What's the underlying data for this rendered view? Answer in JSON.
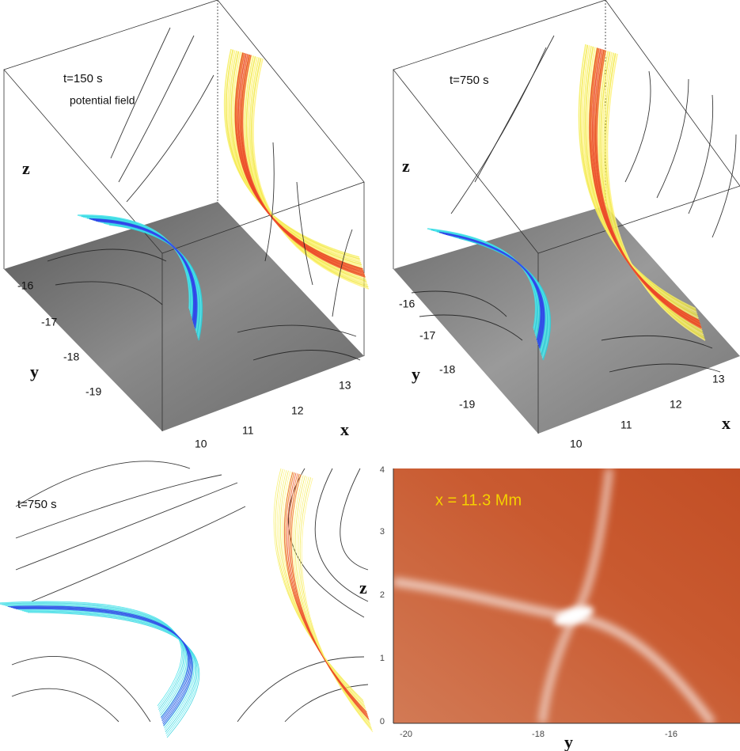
{
  "panels": [
    {
      "time_label": "t=150 s",
      "note": "potential field",
      "z_label": "z",
      "y_label": "y",
      "x_label": "x",
      "y_ticks": [
        "-16",
        "-17",
        "-18",
        "-19"
      ],
      "x_ticks": [
        "10",
        "11",
        "12",
        "13"
      ]
    },
    {
      "time_label": "t=750 s",
      "z_label": "z",
      "y_label": "y",
      "x_label": "x",
      "y_ticks": [
        "-16",
        "-17",
        "-18",
        "-19"
      ],
      "x_ticks": [
        "10",
        "11",
        "12",
        "13"
      ]
    },
    {
      "time_label": "t=750 s"
    },
    {
      "annotation": "x = 11.3 Mm",
      "z_label": "z",
      "y_label": "y",
      "z_ticks": [
        "0",
        "1",
        "2",
        "3",
        "4"
      ],
      "y_ticks": [
        "-20",
        "-18",
        "-16"
      ]
    }
  ]
}
